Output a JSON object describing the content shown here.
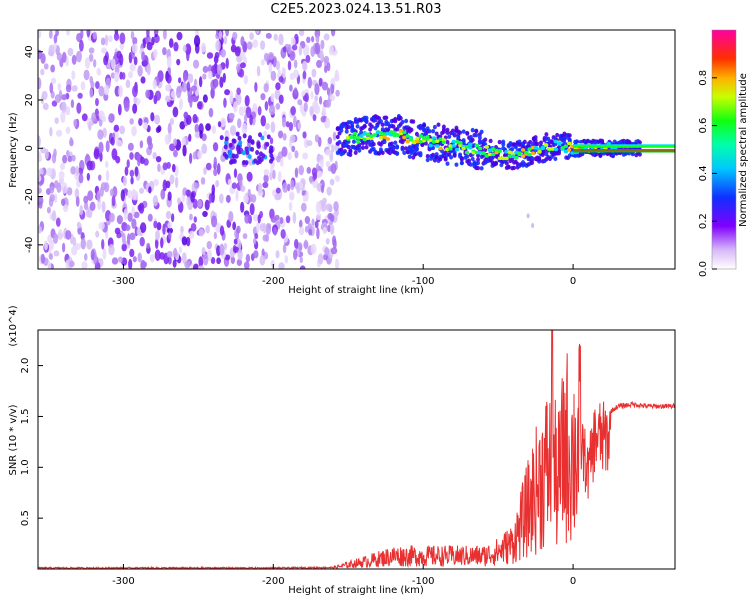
{
  "title": "C2E5.2023.024.13.51.R03",
  "chart_data": [
    {
      "type": "heatmap",
      "xlabel": "Height of straight line (km)",
      "ylabel": "Frequency (Hz)",
      "xlim": [
        -357,
        68
      ],
      "ylim": [
        -50,
        49
      ],
      "xticks": [
        -300,
        -200,
        -100,
        0
      ],
      "xtick_labels": [
        "-300",
        "-200",
        "-100",
        "0"
      ],
      "yticks": [
        -40,
        -20,
        0,
        20,
        40
      ],
      "ytick_labels": [
        "-40",
        "-20",
        "0",
        "20",
        "40"
      ],
      "noise_region_x": [
        -357,
        -157
      ],
      "signal_track": {
        "x": [
          -157,
          -140,
          -120,
          -100,
          -80,
          -60,
          -40,
          -20,
          -10,
          0,
          10,
          20,
          40,
          68
        ],
        "frequency": [
          3,
          5,
          6,
          3,
          1,
          -1,
          -3,
          0,
          1,
          0,
          0,
          0,
          0,
          0
        ]
      },
      "colorbar": {
        "label": "Normalized spectral amplitude",
        "range": [
          0.0,
          1.0
        ],
        "ticks": [
          0.0,
          0.2,
          0.4,
          0.6,
          0.8
        ],
        "tick_labels": [
          "0.0",
          "0.2",
          "0.4",
          "0.6",
          "0.8"
        ],
        "colormap": "rainbow: white → purple → blue → cyan → green → yellow → orange → red → pink"
      },
      "grid": false
    },
    {
      "type": "line",
      "xlabel": "Height of straight line (km)",
      "ylabel": "SNR (10 * v/v)",
      "y_multiplier": "(x10^4)",
      "xlim": [
        -357,
        68
      ],
      "ylim": [
        0,
        23500
      ],
      "xticks": [
        -300,
        -200,
        -100,
        0
      ],
      "xtick_labels": [
        "-300",
        "-200",
        "-100",
        "0"
      ],
      "yticks": [
        5000,
        10000,
        15000,
        20000
      ],
      "ytick_labels": [
        "0.5",
        "1.0",
        "1.5",
        "2.0"
      ],
      "series": [
        {
          "color": "#e83030",
          "x": [
            -357,
            -300,
            -250,
            -200,
            -160,
            -150,
            -140,
            -120,
            -100,
            -80,
            -60,
            -50,
            -40,
            -35,
            -30,
            -25,
            -20,
            -15,
            -10,
            -5,
            0,
            5,
            10,
            15,
            20,
            30,
            40,
            50,
            60,
            68
          ],
          "y": [
            100,
            100,
            100,
            100,
            150,
            500,
            800,
            1500,
            1500,
            1500,
            1500,
            2000,
            3000,
            5000,
            7000,
            9000,
            11000,
            12000,
            10000,
            14500,
            13000,
            15000,
            11000,
            15500,
            15000,
            16000,
            16200,
            16000,
            16000,
            16000
          ]
        }
      ],
      "grid": false
    }
  ]
}
